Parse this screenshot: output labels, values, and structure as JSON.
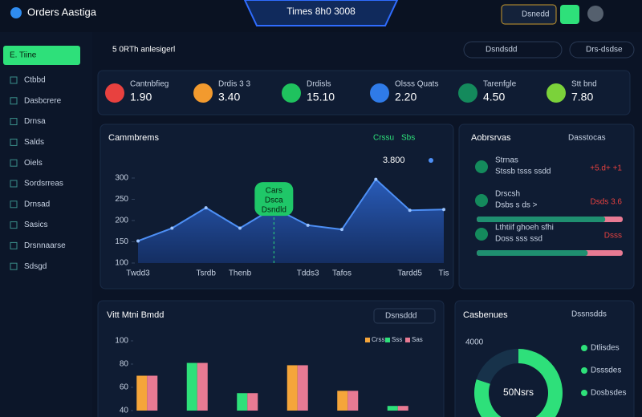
{
  "header": {
    "brand": "Orders Aastiga",
    "title": "Times 8h0 3008",
    "button": "Dsnedd"
  },
  "sidebar": {
    "items": [
      "E. Tiine",
      "Ctbbd",
      "Dasbcrere",
      "Drnsa",
      "Salds",
      "Oiels",
      "Sordsrreas",
      "Drnsad",
      "Sasics",
      "Drsnnaarse",
      "Sdsgd"
    ]
  },
  "toolbar": {
    "status": "5 0RTh anlesigerl",
    "filters": [
      "Dsndsdd",
      "Drs-dsdse"
    ]
  },
  "kpis": [
    {
      "label": "Cantnbfieg",
      "value": "1.90",
      "color": "#e8413f"
    },
    {
      "label": "Drdis 3 3",
      "value": "3.40",
      "color": "#f29a2e"
    },
    {
      "label": "Drdisls",
      "value": "15.10",
      "color": "#1fc25e"
    },
    {
      "label": "Olsss Quats",
      "value": "2.20",
      "color": "#2f7be8"
    },
    {
      "label": "Tarenfgle",
      "value": "4.50",
      "color": "#148a5c"
    },
    {
      "label": "Stt bnd",
      "value": "7.80",
      "color": "#7bd23a"
    }
  ],
  "activity": {
    "title": "Aobrsrvas",
    "tab": "Dasstocas",
    "items": [
      {
        "title": "Strnas",
        "sub": "Stssb tsss ssdd",
        "value": "+5.d+ +1"
      },
      {
        "title": "Drscsh",
        "sub": "Dsbs s ds >",
        "value": "Dsds 3.6",
        "progress": 88
      },
      {
        "title": "Lthtiif ghoeh sfhi",
        "sub": "Doss sss ssd",
        "value": "Dsss",
        "progress": 76
      }
    ]
  },
  "donut_panel": {
    "chip": "Dssnsdds",
    "top": "4000",
    "legend": [
      "Dtlisdes",
      "Dsssdes",
      "Dosbsdes"
    ]
  },
  "chart_data": [
    {
      "type": "line",
      "title": "Cammbrems",
      "legend": [
        "Crssu",
        "Sbs"
      ],
      "headline": "3.800",
      "annotation": [
        "Cars",
        "Dsca",
        "Dsndld"
      ],
      "categories": [
        "Twdd3",
        null,
        "Tsrdb",
        "Thenb",
        null,
        "Tdds3",
        "Tafos",
        null,
        "Tardd5",
        "Tis"
      ],
      "values": [
        152,
        182,
        230,
        182,
        230,
        189,
        179,
        297,
        224,
        226
      ],
      "color": "#4d8ff5",
      "ylim": [
        100,
        300
      ],
      "yticks": [
        100,
        150,
        200,
        250,
        300
      ]
    },
    {
      "type": "bar",
      "title": "Vitt Mtni Bmdd",
      "chip": "Dsnsddd",
      "categories": [
        null,
        null,
        null,
        null,
        null,
        null
      ],
      "series": [
        {
          "name": "Crss",
          "color": "#f5a53a",
          "values": [
            70,
            null,
            null,
            79,
            57,
            null
          ]
        },
        {
          "name": "Sss",
          "color": "#2ee07a",
          "values": [
            null,
            81,
            55,
            null,
            null,
            44
          ]
        },
        {
          "name": "Sas",
          "color": "#e87a93",
          "values": [
            70,
            81,
            55,
            79,
            57,
            44
          ]
        }
      ],
      "ylim": [
        40,
        100
      ],
      "yticks": [
        40,
        60,
        80,
        100
      ]
    },
    {
      "type": "pie",
      "title": "Casbenues",
      "center_label": "50Nsrs",
      "values": [
        80,
        20
      ],
      "colors": [
        "#2ee07a",
        "#17324a"
      ]
    }
  ]
}
